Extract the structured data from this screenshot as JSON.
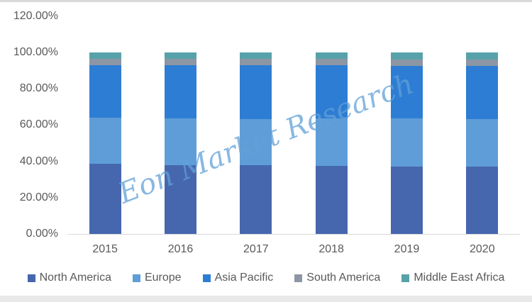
{
  "watermark": {
    "text": "Eon Market Research",
    "color": "#60A0D8"
  },
  "page": {
    "top_strip_color": "#D9D9D9",
    "bottom_strip_color": "#E9E9E9",
    "axis_text_color": "#595959",
    "axis_line_color": "#D9D9D9"
  },
  "chart_data": {
    "type": "bar",
    "variant": "100%-stacked-column",
    "title": "",
    "xlabel": "",
    "ylabel": "",
    "grid": false,
    "legend_position": "bottom",
    "ylim": [
      0,
      120
    ],
    "y_ticks": [
      "0.00%",
      "20.00%",
      "40.00%",
      "60.00%",
      "80.00%",
      "100.00%",
      "120.00%"
    ],
    "y_tick_values": [
      0,
      20,
      40,
      60,
      80,
      100,
      120
    ],
    "categories": [
      "2015",
      "2016",
      "2017",
      "2018",
      "2019",
      "2020"
    ],
    "series": [
      {
        "name": "North America",
        "color": "#4667AE",
        "values": [
          38.5,
          38.0,
          38.0,
          37.5,
          37.3,
          37.2
        ]
      },
      {
        "name": "Europe",
        "color": "#5F9DD8",
        "values": [
          25.5,
          25.7,
          25.3,
          26.2,
          26.2,
          26.2
        ]
      },
      {
        "name": "Asia Pacific",
        "color": "#2E7DD4",
        "values": [
          28.8,
          29.1,
          29.5,
          29.1,
          29.2,
          29.3
        ]
      },
      {
        "name": "South America",
        "color": "#8C96A4",
        "values": [
          3.6,
          3.6,
          3.6,
          3.6,
          3.6,
          3.6
        ]
      },
      {
        "name": "Middle East Africa",
        "color": "#57A2AA",
        "values": [
          3.6,
          3.6,
          3.6,
          3.6,
          3.7,
          3.7
        ]
      }
    ]
  }
}
